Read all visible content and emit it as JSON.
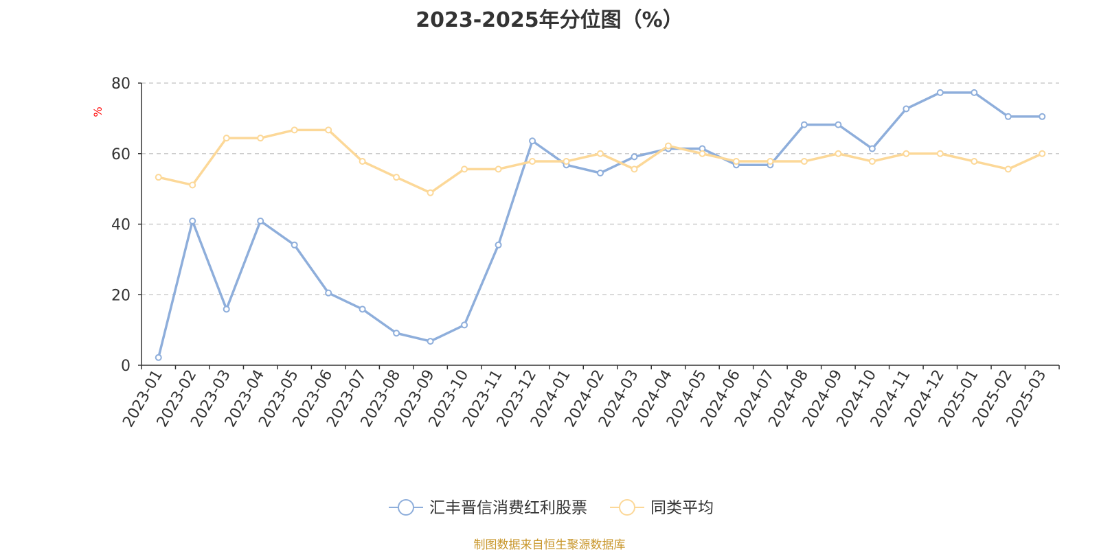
{
  "chart_data": {
    "type": "line",
    "title": "2023-2025年分位图（%）",
    "ylabel": "%",
    "xlabel": "",
    "ylim": [
      0,
      80
    ],
    "yticks": [
      0,
      20,
      40,
      60,
      80
    ],
    "grid": true,
    "legend_position": "bottom",
    "categories": [
      "2023-01",
      "2023-02",
      "2023-03",
      "2023-04",
      "2023-05",
      "2023-06",
      "2023-07",
      "2023-08",
      "2023-09",
      "2023-10",
      "2023-11",
      "2023-12",
      "2024-01",
      "2024-02",
      "2024-03",
      "2024-04",
      "2024-05",
      "2024-06",
      "2024-07",
      "2024-08",
      "2024-09",
      "2024-10",
      "2024-11",
      "2024-12",
      "2025-01",
      "2025-02",
      "2025-03"
    ],
    "series": [
      {
        "name": "汇丰晋信消费红利股票",
        "color": "#8eaedb",
        "values": [
          2.2,
          40.9,
          15.9,
          40.9,
          34.1,
          20.5,
          15.9,
          9.1,
          6.8,
          11.4,
          34.1,
          63.6,
          56.8,
          54.5,
          59.1,
          61.4,
          61.4,
          56.8,
          56.8,
          68.2,
          68.2,
          61.4,
          72.7,
          77.3,
          77.3,
          70.5,
          70.5
        ]
      },
      {
        "name": "同类平均",
        "color": "#fcd898",
        "values": [
          53.3,
          51.1,
          64.4,
          64.4,
          66.7,
          66.7,
          57.8,
          53.3,
          48.9,
          55.6,
          55.6,
          57.8,
          57.8,
          60.0,
          55.6,
          62.2,
          60.0,
          57.8,
          57.8,
          57.8,
          60.0,
          57.8,
          60.0,
          60.0,
          57.8,
          55.6,
          60.0
        ]
      }
    ]
  },
  "source_note": "制图数据来自恒生聚源数据库",
  "ylabel_color": "#ff0000",
  "source_color": "#c8962a"
}
